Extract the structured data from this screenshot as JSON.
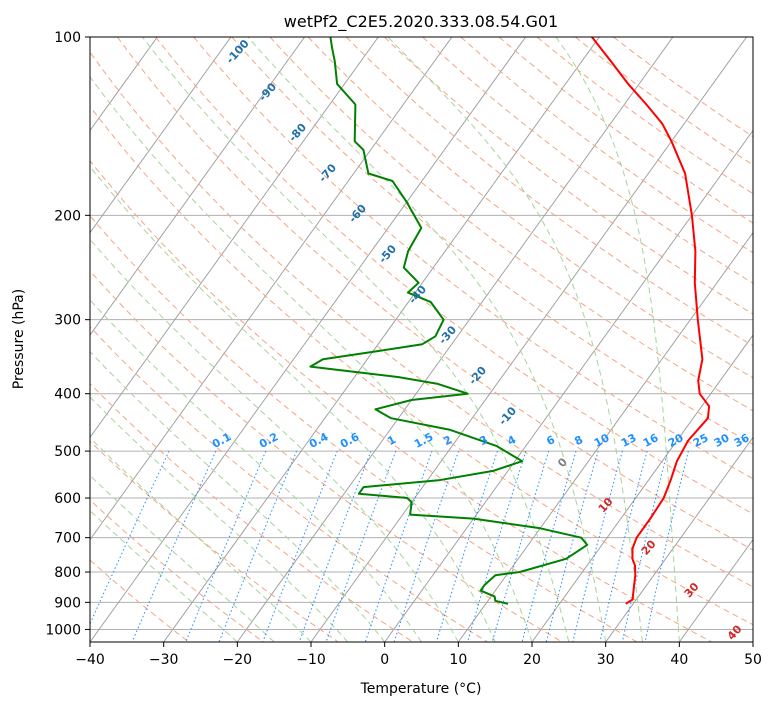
{
  "chart_data": {
    "type": "line",
    "title": "wetPf2_C2E5.2020.333.08.54.G01",
    "xlabel": "Temperature (°C)",
    "ylabel": "Pressure (hPa)",
    "xlim": [
      -40,
      50
    ],
    "ylim": [
      1050,
      100
    ],
    "y_scale": "log",
    "grid": true,
    "x_ticks": [
      -40,
      -30,
      -20,
      -10,
      0,
      10,
      20,
      30,
      40,
      50
    ],
    "y_ticks": [
      100,
      200,
      300,
      400,
      500,
      600,
      700,
      800,
      900,
      1000
    ],
    "skew": true,
    "series": [
      {
        "name": "",
        "color": "#ff0000",
        "points": [
          [
            29.0,
            905
          ],
          [
            29.5,
            890
          ],
          [
            28.5,
            850
          ],
          [
            27.5,
            810
          ],
          [
            26.5,
            780
          ],
          [
            25.5,
            760
          ],
          [
            24.5,
            730
          ],
          [
            24.0,
            700
          ],
          [
            24.0,
            680
          ],
          [
            24.0,
            650
          ],
          [
            23.8,
            600
          ],
          [
            23.0,
            560
          ],
          [
            22.0,
            520
          ],
          [
            21.5,
            480
          ],
          [
            22.0,
            440
          ],
          [
            21.0,
            420
          ],
          [
            18.5,
            400
          ],
          [
            17.0,
            380
          ],
          [
            15.5,
            350
          ],
          [
            11.0,
            300
          ],
          [
            7.0,
            260
          ],
          [
            4.0,
            230
          ],
          [
            0.0,
            200
          ],
          [
            -5.0,
            170
          ],
          [
            -10.0,
            150
          ],
          [
            -13.0,
            140
          ],
          [
            -17.0,
            130
          ],
          [
            -21.5,
            120
          ],
          [
            -26.0,
            110
          ],
          [
            -31.0,
            100
          ]
        ]
      },
      {
        "name": "",
        "color": "#008000",
        "points": [
          [
            13.0,
            905
          ],
          [
            11.0,
            895
          ],
          [
            10.5,
            880
          ],
          [
            8.0,
            860
          ],
          [
            8.0,
            840
          ],
          [
            8.5,
            810
          ],
          [
            11.5,
            800
          ],
          [
            16.5,
            760
          ],
          [
            18.0,
            720
          ],
          [
            16.5,
            700
          ],
          [
            10.0,
            675
          ],
          [
            0.0,
            650
          ],
          [
            -9.0,
            640
          ],
          [
            -10.0,
            610
          ],
          [
            -11.0,
            600
          ],
          [
            -18.0,
            590
          ],
          [
            -18.0,
            575
          ],
          [
            -8.5,
            560
          ],
          [
            -2.0,
            540
          ],
          [
            1.0,
            520
          ],
          [
            -4.0,
            490
          ],
          [
            -12.0,
            460
          ],
          [
            -21.0,
            440
          ],
          [
            -24.0,
            425
          ],
          [
            -20.0,
            410
          ],
          [
            -13.0,
            400
          ],
          [
            -18.0,
            385
          ],
          [
            -24.0,
            375
          ],
          [
            -37.0,
            360
          ],
          [
            -36.0,
            350
          ],
          [
            -30.0,
            340
          ],
          [
            -24.0,
            330
          ],
          [
            -23.0,
            320
          ],
          [
            -23.5,
            300
          ],
          [
            -27.0,
            280
          ],
          [
            -31.0,
            270
          ],
          [
            -30.5,
            260
          ],
          [
            -34.0,
            245
          ],
          [
            -35.0,
            230
          ],
          [
            -35.5,
            210
          ],
          [
            -40.0,
            190
          ],
          [
            -44.0,
            175
          ],
          [
            -48.0,
            170
          ],
          [
            -51.0,
            155
          ],
          [
            -53.0,
            150
          ],
          [
            -56.5,
            130
          ],
          [
            -61.0,
            120
          ],
          [
            -63.5,
            110
          ],
          [
            -65.0,
            105
          ],
          [
            -66.5,
            100
          ]
        ]
      }
    ],
    "annotations": {
      "dry_adiabat_labels": [
        "-100",
        "-90",
        "-80",
        "-70",
        "-60",
        "-50",
        "-40",
        "-30",
        "-20",
        "-10",
        "0",
        "10",
        "20",
        "30",
        "40"
      ],
      "mixing_ratio_labels": [
        "0.1",
        "0.2",
        "0.4",
        "0.6",
        "1",
        "1.5",
        "2",
        "3",
        "4",
        "6",
        "8",
        "10",
        "13",
        "16",
        "20",
        "25",
        "30",
        "36"
      ]
    }
  },
  "colors": {
    "temperature": "#ff0000",
    "dewpoint": "#008000",
    "isotherm": "#999999",
    "dry_adiabat": "#f4a582",
    "moist_adiabat": "#a6d49c",
    "mixing_ratio": "#1e90ff",
    "dry_label_cold": "#1f6fa8",
    "dry_label_warm": "#d62728",
    "zero_label": "#808080"
  }
}
